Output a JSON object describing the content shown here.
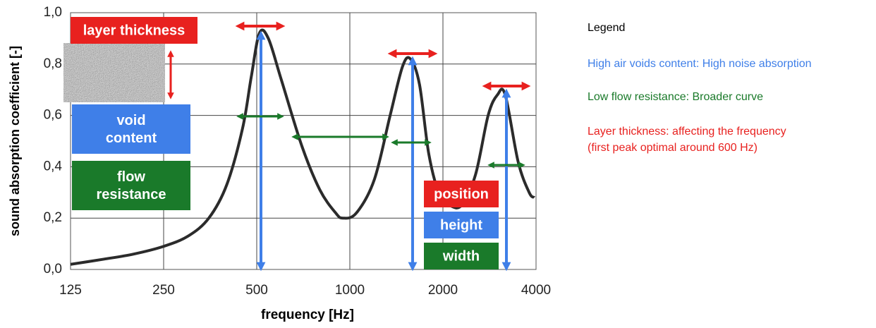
{
  "chart_data": {
    "type": "line",
    "x_label": "frequency [Hz]",
    "y_label": "sound absorption coefficient [-]",
    "xscale": "log",
    "xlim": [
      125,
      4000
    ],
    "ylim": [
      0,
      1
    ],
    "xticks": [
      125,
      250,
      500,
      1000,
      2000,
      4000
    ],
    "yticks": [
      {
        "value": 0,
        "label": "0,0"
      },
      {
        "value": 0.2,
        "label": "0,2"
      },
      {
        "value": 0.4,
        "label": "0,4"
      },
      {
        "value": 0.6,
        "label": "0,6"
      },
      {
        "value": 0.8,
        "label": "0,8"
      },
      {
        "value": 1,
        "label": "1,0"
      }
    ],
    "grid": true,
    "color": "#2b2b2b",
    "x": [
      125,
      160,
      200,
      250,
      300,
      350,
      400,
      450,
      480,
      510,
      545,
      600,
      700,
      800,
      900,
      950,
      1050,
      1200,
      1350,
      1480,
      1570,
      1680,
      1800,
      1950,
      2100,
      2300,
      2550,
      2800,
      3000,
      3180,
      3500,
      3800,
      3950
    ],
    "values": [
      0.02,
      0.04,
      0.06,
      0.09,
      0.13,
      0.2,
      0.33,
      0.55,
      0.75,
      0.92,
      0.9,
      0.74,
      0.48,
      0.31,
      0.22,
      0.2,
      0.22,
      0.35,
      0.6,
      0.79,
      0.82,
      0.72,
      0.45,
      0.29,
      0.25,
      0.25,
      0.37,
      0.6,
      0.68,
      0.68,
      0.42,
      0.3,
      0.28
    ],
    "boxes": [
      [
        "layer thickness"
      ],
      [
        "void",
        "content"
      ],
      [
        "flow",
        "resistance"
      ],
      [
        "position"
      ],
      [
        "height"
      ],
      [
        "width"
      ]
    ],
    "legend_title": "Legend",
    "notes": [
      "High air voids content: High noise absorption",
      "Low flow resistance: Broader curve",
      "Layer thickness: affecting the frequency",
      "(first peak optimal around 600 Hz)"
    ]
  }
}
